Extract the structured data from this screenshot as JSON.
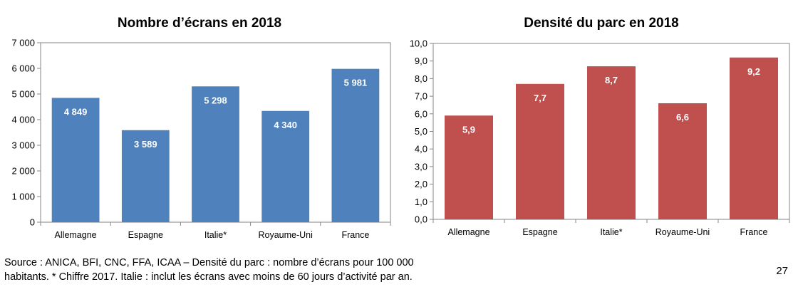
{
  "chart_data": [
    {
      "type": "bar",
      "title": "Nombre d’écrans en 2018",
      "categories": [
        "Allemagne",
        "Espagne",
        "Italie*",
        "Royaume-Uni",
        "France"
      ],
      "values": [
        4849,
        3589,
        5298,
        4340,
        5981
      ],
      "value_labels": [
        "4 849",
        "3 589",
        "5 298",
        "4 340",
        "5 981"
      ],
      "ylim": [
        0,
        7000
      ],
      "yticks": [
        0,
        1000,
        2000,
        3000,
        4000,
        5000,
        6000,
        7000
      ],
      "ytick_labels": [
        "0",
        "1 000",
        "2 000",
        "3 000",
        "4 000",
        "5 000",
        "6 000",
        "7 000"
      ],
      "grid": false,
      "bar_color": "#4f81bd"
    },
    {
      "type": "bar",
      "title": "Densité du parc en 2018",
      "categories": [
        "Allemagne",
        "Espagne",
        "Italie*",
        "Royaume-Uni",
        "France"
      ],
      "values": [
        5.9,
        7.7,
        8.7,
        6.6,
        9.2
      ],
      "value_labels": [
        "5,9",
        "7,7",
        "8,7",
        "6,6",
        "9,2"
      ],
      "ylim": [
        0,
        10
      ],
      "yticks": [
        0,
        1,
        2,
        3,
        4,
        5,
        6,
        7,
        8,
        9,
        10
      ],
      "ytick_labels": [
        "0,0",
        "1,0",
        "2,0",
        "3,0",
        "4,0",
        "5,0",
        "6,0",
        "7,0",
        "8,0",
        "9,0",
        "10,0"
      ],
      "grid": false,
      "bar_color": "#c0504d"
    }
  ],
  "footer": {
    "line1": "Source : ANICA, BFI, CNC, FFA, ICAA – Densité du parc : nombre d’écrans pour 100 000",
    "line2": "habitants. * Chiffre 2017. Italie : inclut les écrans avec moins de 60 jours d’activité par an."
  },
  "page_number": "27"
}
